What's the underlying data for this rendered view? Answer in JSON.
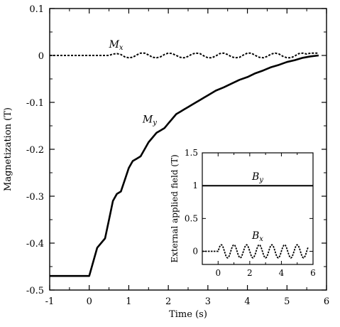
{
  "chart_data": [
    {
      "type": "line",
      "xlabel": "Time (s)",
      "ylabel": "Magnetization (T)",
      "xlim": [
        -1,
        6
      ],
      "ylim": [
        -0.5,
        0.1
      ],
      "xticks": [
        "-1",
        "0",
        "1",
        "2",
        "3",
        "4",
        "5",
        "6"
      ],
      "yticks": [
        "0.1",
        "0",
        "-0.1",
        "-0.2",
        "-0.3",
        "-0.4",
        "-0.5"
      ],
      "series": [
        {
          "name": "Mx",
          "label_main": "M",
          "label_sub": "x",
          "style": "dashed",
          "x": [
            -1,
            0,
            0.5,
            0.6,
            0.7,
            0.8,
            0.9,
            1.0,
            1.1,
            1.2,
            1.3,
            1.4,
            1.5,
            1.6,
            1.7,
            1.8,
            1.9,
            2.0,
            2.1,
            2.2,
            2.3,
            2.4,
            2.5,
            2.6,
            2.7,
            2.8,
            2.9,
            3.0,
            3.1,
            3.2,
            3.3,
            3.4,
            3.5,
            3.6,
            3.7,
            3.8,
            3.9,
            4.0,
            4.1,
            4.2,
            4.3,
            4.4,
            4.5,
            4.6,
            4.7,
            4.8,
            4.9,
            5.0,
            5.1,
            5.2,
            5.3,
            5.4,
            5.5,
            5.6,
            5.7,
            5.8
          ],
          "y": [
            0,
            0,
            0,
            0.003,
            0.004,
            0.002,
            -0.003,
            -0.005,
            -0.004,
            0.001,
            0.005,
            0.005,
            0.001,
            -0.004,
            -0.005,
            -0.003,
            0.002,
            0.005,
            0.004,
            0.0,
            -0.004,
            -0.005,
            -0.002,
            0.003,
            0.005,
            0.004,
            -0.001,
            -0.005,
            -0.005,
            -0.001,
            0.004,
            0.005,
            0.002,
            -0.003,
            -0.005,
            -0.004,
            0.001,
            0.005,
            0.005,
            0.0,
            -0.004,
            -0.005,
            -0.002,
            0.003,
            0.005,
            0.003,
            -0.002,
            -0.005,
            -0.005,
            -0.001,
            0.004,
            0.005,
            0.003,
            0.005,
            0.005,
            0.005
          ]
        },
        {
          "name": "My",
          "label_main": "M",
          "label_sub": "y",
          "style": "solid",
          "x": [
            -1,
            0,
            0.1,
            0.2,
            0.3,
            0.4,
            0.5,
            0.6,
            0.7,
            0.8,
            0.9,
            1.0,
            1.1,
            1.2,
            1.3,
            1.4,
            1.5,
            1.6,
            1.7,
            1.8,
            1.9,
            2.0,
            2.1,
            2.2,
            2.3,
            2.4,
            2.5,
            2.6,
            2.7,
            2.8,
            2.9,
            3.0,
            3.2,
            3.4,
            3.6,
            3.8,
            4.0,
            4.2,
            4.4,
            4.6,
            4.8,
            5.0,
            5.2,
            5.4,
            5.6,
            5.8
          ],
          "y": [
            -0.47,
            -0.47,
            -0.44,
            -0.41,
            -0.4,
            -0.39,
            -0.35,
            -0.31,
            -0.295,
            -0.29,
            -0.265,
            -0.24,
            -0.225,
            -0.22,
            -0.215,
            -0.2,
            -0.185,
            -0.175,
            -0.165,
            -0.16,
            -0.155,
            -0.145,
            -0.135,
            -0.125,
            -0.12,
            -0.115,
            -0.11,
            -0.105,
            -0.1,
            -0.095,
            -0.09,
            -0.085,
            -0.075,
            -0.068,
            -0.06,
            -0.052,
            -0.046,
            -0.038,
            -0.032,
            -0.025,
            -0.02,
            -0.014,
            -0.01,
            -0.005,
            -0.002,
            0.0
          ]
        }
      ]
    },
    {
      "type": "line",
      "xlabel": "",
      "ylabel": "External applied field (T)",
      "xlim": [
        -1,
        6
      ],
      "ylim": [
        -0.2,
        1.5
      ],
      "xticks": [
        "0",
        "2",
        "4",
        "6"
      ],
      "yticks": [
        "1.5",
        "1",
        "0.5",
        "0"
      ],
      "series": [
        {
          "name": "By",
          "label_main": "B",
          "label_sub": "y",
          "style": "solid",
          "x": [
            -1,
            6
          ],
          "y": [
            1,
            1
          ]
        },
        {
          "name": "Bx",
          "label_main": "B",
          "label_sub": "x",
          "style": "dashed",
          "amplitude": 0.1,
          "period": 0.8,
          "x": [
            -1,
            0,
            5.7
          ],
          "y": [
            0,
            0,
            0
          ]
        }
      ]
    }
  ]
}
